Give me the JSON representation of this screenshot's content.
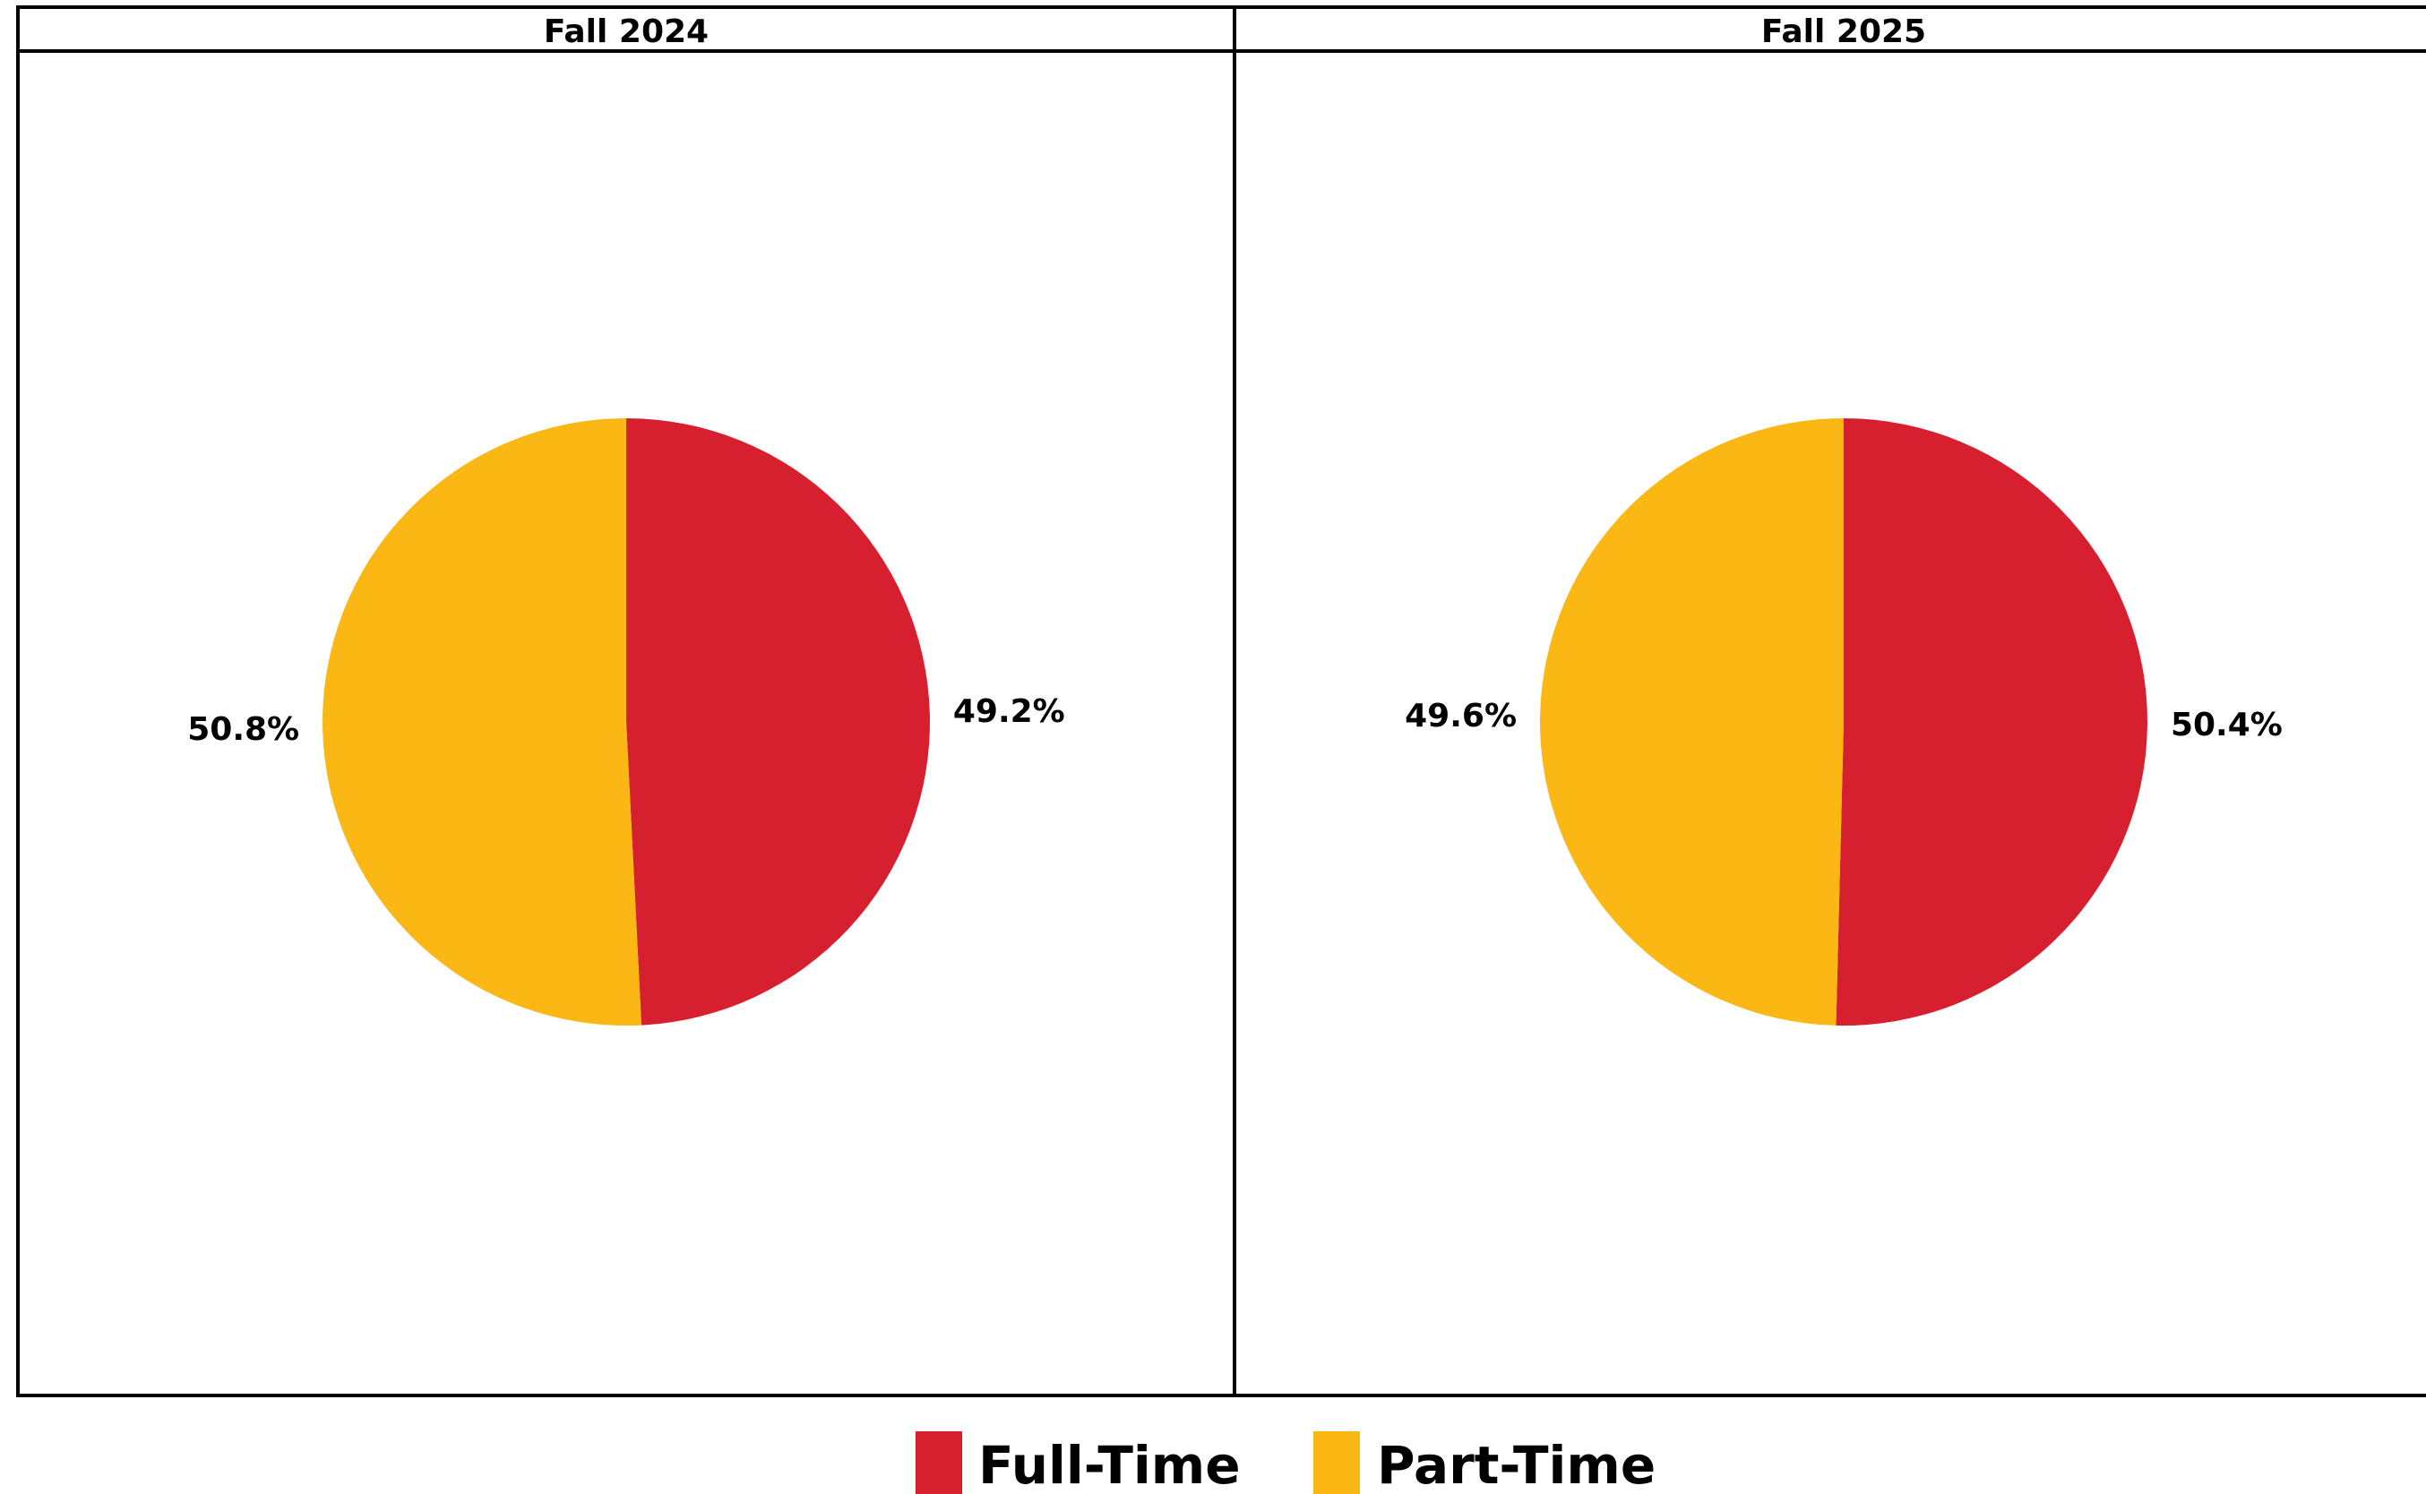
{
  "chart_data": {
    "type": "pie",
    "categories": [
      "Full-Time",
      "Part-Time"
    ],
    "colors": {
      "Full-Time": "#d7202f",
      "Part-Time": "#fbb814"
    },
    "panels": [
      {
        "title": "Fall 2024",
        "slices": [
          {
            "label": "Full-Time",
            "value": 49.2,
            "text": "49.2%"
          },
          {
            "label": "Part-Time",
            "value": 50.8,
            "text": "50.8%"
          }
        ]
      },
      {
        "title": "Fall 2025",
        "slices": [
          {
            "label": "Full-Time",
            "value": 50.4,
            "text": "50.4%"
          },
          {
            "label": "Part-Time",
            "value": 49.6,
            "text": "49.6%"
          }
        ]
      }
    ],
    "legend": {
      "placement": "bottom-center",
      "items": [
        {
          "label": "Full-Time",
          "color": "#d7202f"
        },
        {
          "label": "Part-Time",
          "color": "#fbb814"
        }
      ]
    }
  }
}
